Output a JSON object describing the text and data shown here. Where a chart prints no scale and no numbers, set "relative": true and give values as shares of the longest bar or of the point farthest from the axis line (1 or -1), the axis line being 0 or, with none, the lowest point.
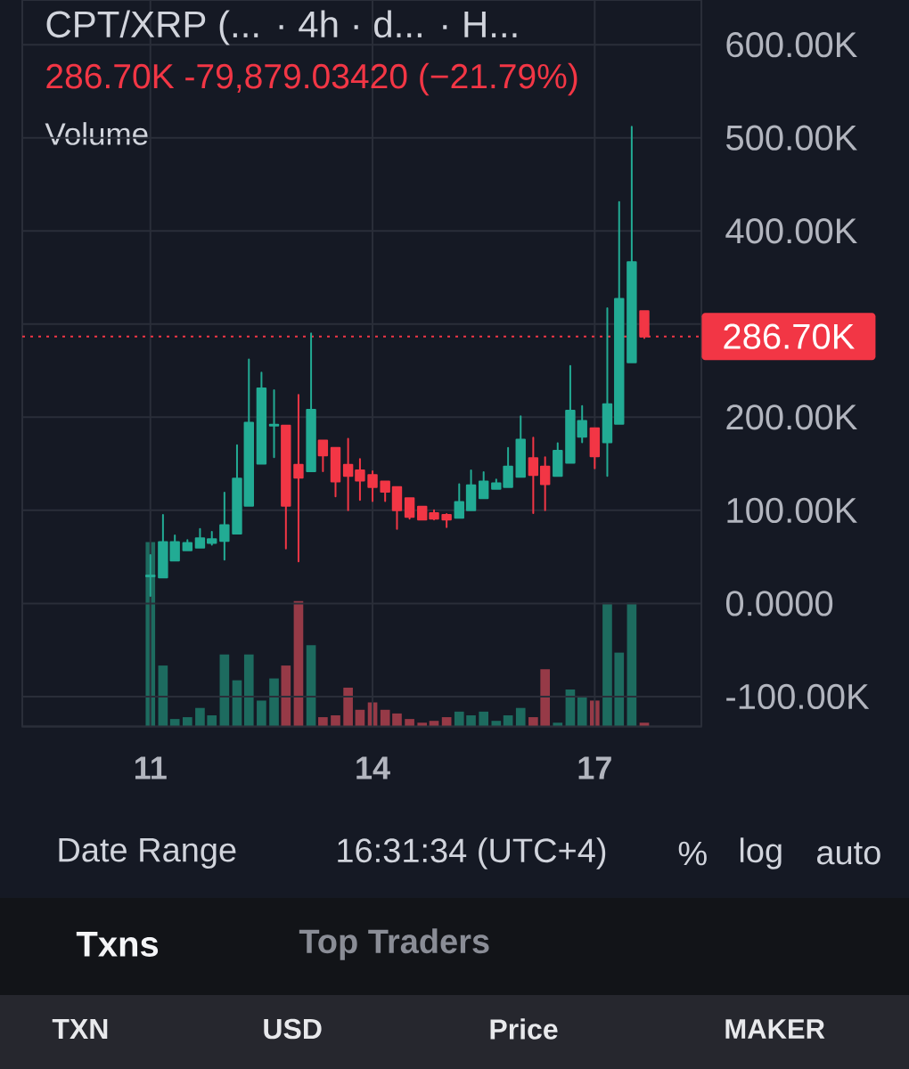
{
  "chart_data": [
    {
      "type": "candlestick",
      "title": "CPT/XRP (... · 4h · d... · H...",
      "subtitle": "286.70K -79,879.03420 (−21.79%)",
      "x": [
        11,
        11.17,
        11.33,
        11.5,
        11.67,
        11.83,
        12,
        12.17,
        12.33,
        12.5,
        12.67,
        12.83,
        13,
        13.17,
        13.33,
        13.5,
        13.67,
        13.83,
        14,
        14.17,
        14.33,
        14.5,
        14.67,
        14.83,
        15,
        15.17,
        15.33,
        15.5,
        15.67,
        15.83,
        16,
        16.17,
        16.33,
        16.5,
        16.67,
        16.83,
        17,
        17.17,
        17.33,
        17.5,
        17.67
      ],
      "ohlc": [
        [
          29000,
          52000,
          8000,
          30000
        ],
        [
          28000,
          95000,
          28000,
          66000
        ],
        [
          46000,
          73000,
          46000,
          66000
        ],
        [
          57000,
          68000,
          57000,
          65000
        ],
        [
          60000,
          80000,
          60000,
          70000
        ],
        [
          65000,
          77000,
          63000,
          69000
        ],
        [
          67000,
          119000,
          47000,
          84000
        ],
        [
          75000,
          170000,
          75000,
          134000
        ],
        [
          105000,
          262000,
          105000,
          194000
        ],
        [
          150000,
          248000,
          150000,
          231000
        ],
        [
          191000,
          229000,
          157000,
          192000
        ],
        [
          191000,
          191000,
          59000,
          105000
        ],
        [
          149000,
          224000,
          45000,
          135000
        ],
        [
          142000,
          290000,
          142000,
          208000
        ],
        [
          175000,
          175000,
          142000,
          159000
        ],
        [
          167000,
          167000,
          115000,
          131000
        ],
        [
          149000,
          177000,
          100000,
          137000
        ],
        [
          143000,
          155000,
          111000,
          132000
        ],
        [
          138000,
          142000,
          110000,
          125000
        ],
        [
          131000,
          131000,
          110000,
          120000
        ],
        [
          125000,
          125000,
          80000,
          100000
        ],
        [
          113000,
          113000,
          91000,
          93000
        ],
        [
          104000,
          104000,
          90000,
          90000
        ],
        [
          97000,
          100000,
          90000,
          91000
        ],
        [
          95000,
          96000,
          82000,
          90000
        ],
        [
          92000,
          128000,
          92000,
          109000
        ],
        [
          100000,
          143000,
          100000,
          127000
        ],
        [
          113000,
          141000,
          113000,
          131000
        ],
        [
          123000,
          133000,
          123000,
          129000
        ],
        [
          125000,
          167000,
          125000,
          147000
        ],
        [
          136000,
          201000,
          136000,
          176000
        ],
        [
          156000,
          178000,
          97000,
          138000
        ],
        [
          147000,
          157000,
          100000,
          128000
        ],
        [
          137000,
          172000,
          137000,
          164000
        ],
        [
          151000,
          255000,
          151000,
          207000
        ],
        [
          179000,
          212000,
          173000,
          196000
        ],
        [
          188000,
          188000,
          145000,
          158000
        ],
        [
          173000,
          317000,
          137000,
          214000
        ],
        [
          193000,
          431000,
          193000,
          327000
        ],
        [
          259000,
          512000,
          259000,
          366600
        ],
        [
          314000,
          314000,
          285000,
          286700
        ]
      ],
      "colors": [
        "#22ab94",
        "#22ab94",
        "#22ab94",
        "#22ab94",
        "#22ab94",
        "#22ab94",
        "#22ab94",
        "#22ab94",
        "#22ab94",
        "#22ab94",
        "#22ab94",
        "#f23645",
        "#f23645",
        "#22ab94",
        "#f23645",
        "#f23645",
        "#f23645",
        "#f23645",
        "#f23645",
        "#f23645",
        "#f23645",
        "#f23645",
        "#f23645",
        "#f23645",
        "#f23645",
        "#22ab94",
        "#22ab94",
        "#22ab94",
        "#22ab94",
        "#22ab94",
        "#22ab94",
        "#f23645",
        "#f23645",
        "#22ab94",
        "#22ab94",
        "#22ab94",
        "#f23645",
        "#22ab94",
        "#22ab94",
        "#22ab94",
        "#f23645"
      ],
      "xlim": [
        9.27,
        18.44
      ],
      "xticks": [
        11,
        14,
        17
      ],
      "ylim": [
        -132000,
        648000
      ],
      "yticks": [
        {
          "value": -100000,
          "label": "-100.00K"
        },
        {
          "value": 0,
          "label": "0.0000"
        },
        {
          "value": 100000,
          "label": "100.00K"
        },
        {
          "value": 200000,
          "label": "200.00K"
        },
        {
          "value": 300000,
          "label": null
        },
        {
          "value": 400000,
          "label": "400.00K"
        },
        {
          "value": 500000,
          "label": "500.00K"
        },
        {
          "value": 600000,
          "label": "600.00K"
        }
      ],
      "grid": true,
      "ref_lines": [
        {
          "axis": "y",
          "value": 286700,
          "label": "286.70K",
          "color": "#f23645",
          "line_style": "dotted"
        }
      ],
      "annotations": [
        "Date Range",
        "16:31:34 (UTC+4)",
        "%",
        "log",
        "auto",
        "Txns",
        "Top Traders",
        "TXN",
        "USD",
        "Price",
        "MAKER"
      ]
    },
    {
      "type": "bar",
      "title": "Volume",
      "relative": true,
      "tick_labels": false,
      "xlim": [
        9.27,
        18.44
      ],
      "xticks": [
        11,
        14,
        17
      ],
      "x": [
        11,
        11.17,
        11.33,
        11.5,
        11.67,
        11.83,
        12,
        12.17,
        12.33,
        12.5,
        12.67,
        12.83,
        13,
        13.17,
        13.33,
        13.5,
        13.67,
        13.83,
        14,
        14.17,
        14.33,
        14.5,
        14.67,
        14.83,
        15,
        15.17,
        15.33,
        15.5,
        15.67,
        15.83,
        16,
        16.17,
        16.33,
        16.5,
        16.67,
        16.83,
        17,
        17.17,
        17.33,
        17.5,
        17.67
      ],
      "values": [
        1,
        0.33,
        0.04,
        0.05,
        0.1,
        0.06,
        0.39,
        0.25,
        0.39,
        0.14,
        0.26,
        0.33,
        0.68,
        0.44,
        0.05,
        0.06,
        0.21,
        0.09,
        0.13,
        0.09,
        0.07,
        0.04,
        0.02,
        0.03,
        0.05,
        0.08,
        0.06,
        0.08,
        0.03,
        0.06,
        0.1,
        0.05,
        0.31,
        0.02,
        0.2,
        0.16,
        0.14,
        0.67,
        0.4,
        0.67,
        0.02
      ],
      "colors": [
        "#1d6b5f",
        "#1d6b5f",
        "#1d6b5f",
        "#1d6b5f",
        "#1d6b5f",
        "#1d6b5f",
        "#1d6b5f",
        "#1d6b5f",
        "#1d6b5f",
        "#1d6b5f",
        "#1d6b5f",
        "#963a47",
        "#963a47",
        "#1d6b5f",
        "#963a47",
        "#963a47",
        "#963a47",
        "#963a47",
        "#963a47",
        "#963a47",
        "#963a47",
        "#963a47",
        "#963a47",
        "#963a47",
        "#963a47",
        "#1d6b5f",
        "#1d6b5f",
        "#1d6b5f",
        "#1d6b5f",
        "#1d6b5f",
        "#1d6b5f",
        "#963a47",
        "#963a47",
        "#1d6b5f",
        "#1d6b5f",
        "#1d6b5f",
        "#963a47",
        "#1d6b5f",
        "#1d6b5f",
        "#1d6b5f",
        "#963a47"
      ]
    }
  ]
}
